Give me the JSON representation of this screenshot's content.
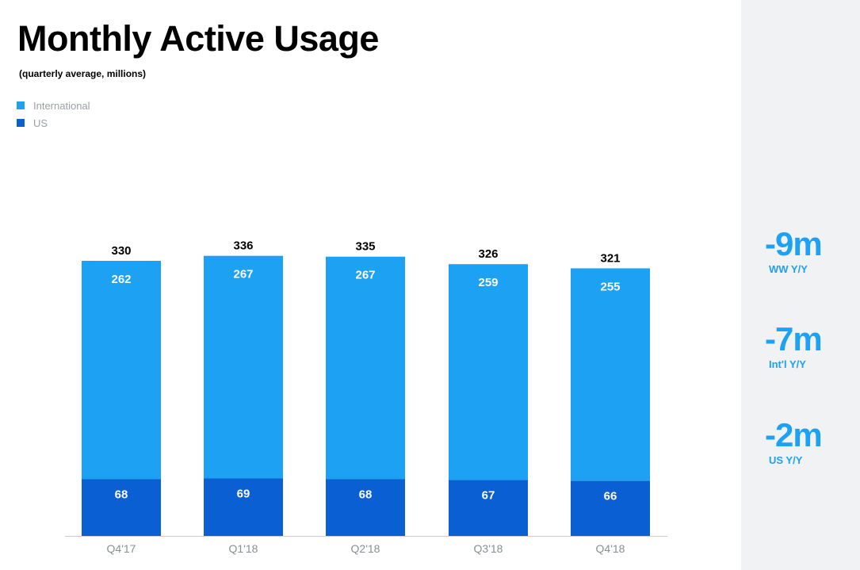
{
  "colors": {
    "international": "#1da1f2",
    "us": "#0a5fd3",
    "axis": "#cccccc",
    "tick_label": "#8a8f94",
    "total_label": "#000000",
    "inner_label": "#ffffff",
    "stat_accent": "#1da1f2",
    "panel_background": "#f1f2f4"
  },
  "stats": [
    {
      "value": "-9m",
      "label": "WW Y/Y"
    },
    {
      "value": "-7m",
      "label": "Int'l Y/Y"
    },
    {
      "value": "-2m",
      "label": "US Y/Y"
    }
  ],
  "chart_data": {
    "type": "bar",
    "stacked": true,
    "title": "Monthly Active Usage",
    "subtitle": "(quarterly average, millions)",
    "categories": [
      "Q4'17",
      "Q1'18",
      "Q2'18",
      "Q3'18",
      "Q4'18"
    ],
    "series": [
      {
        "name": "US",
        "values": [
          68,
          69,
          68,
          67,
          66
        ]
      },
      {
        "name": "International",
        "values": [
          262,
          267,
          267,
          259,
          255
        ]
      }
    ],
    "totals": [
      330,
      336,
      335,
      326,
      321
    ],
    "legend": [
      "International",
      "US"
    ],
    "legend_position": "top-left",
    "xlabel": "",
    "ylabel": "",
    "ylim": [
      0,
      350
    ],
    "grid": false
  }
}
